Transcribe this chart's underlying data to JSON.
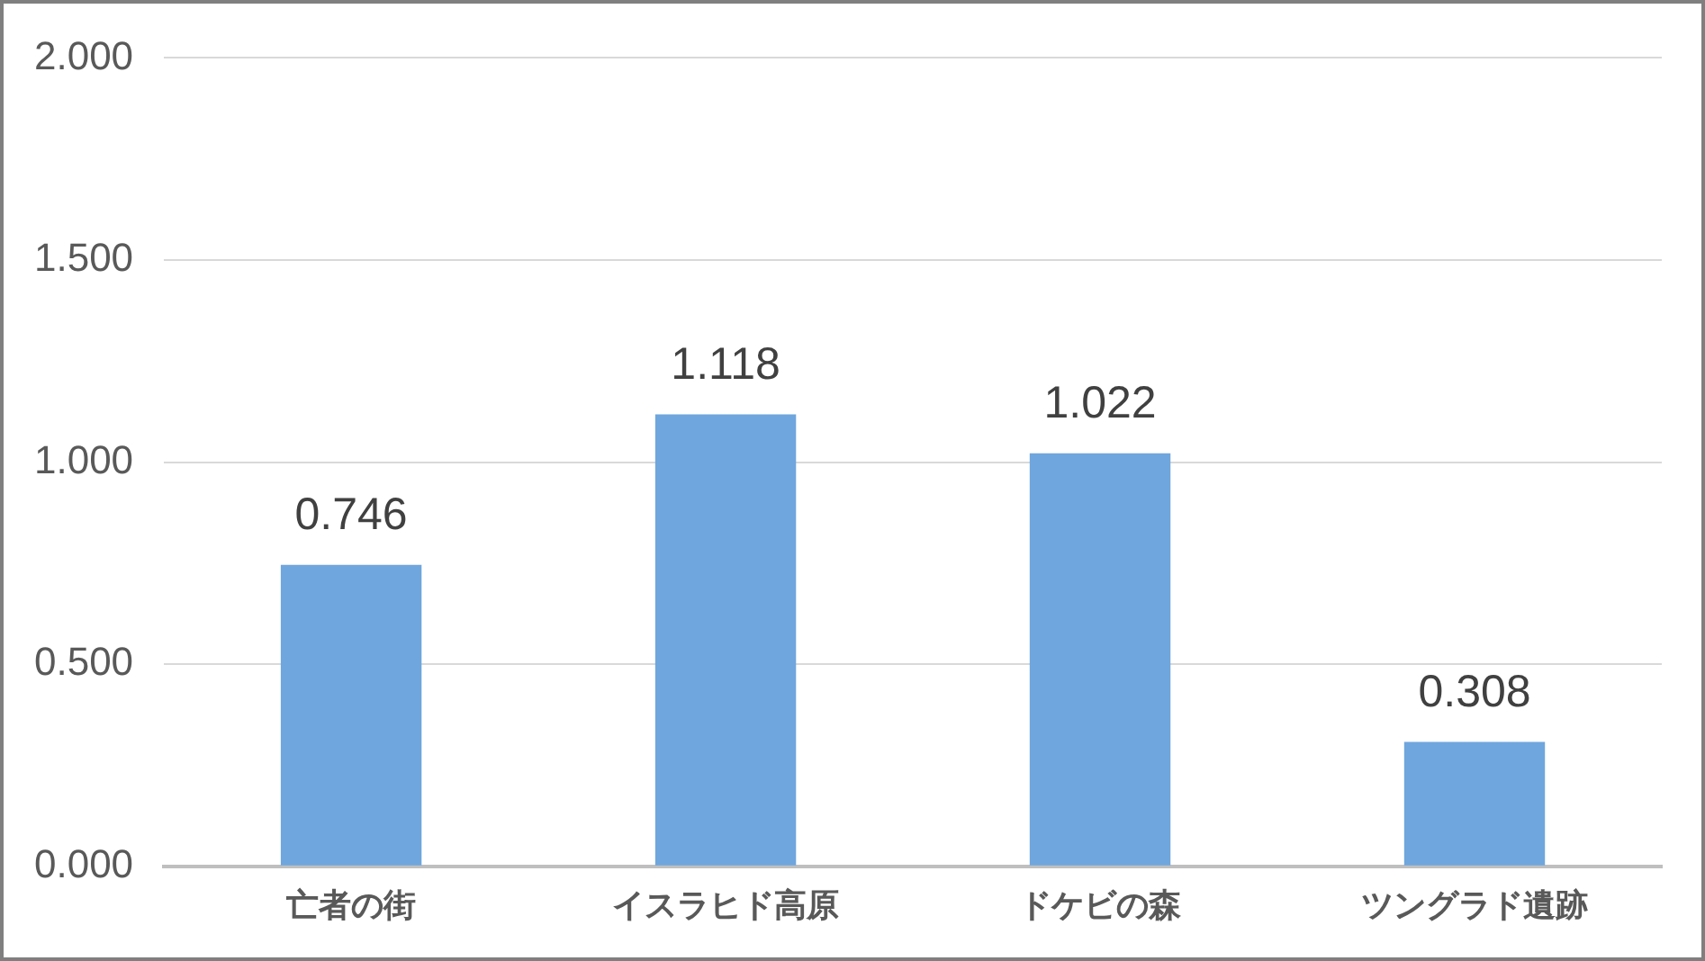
{
  "chart_data": {
    "type": "bar",
    "categories": [
      "亡者の街",
      "イスラヒド高原",
      "ドケビの森",
      "ツングラド遺跡"
    ],
    "values": [
      0.746,
      1.118,
      1.022,
      0.308
    ],
    "color": "#6fa6dd",
    "ylim": [
      0,
      2
    ],
    "yticks": [
      {
        "value": 0,
        "label": "0.000"
      },
      {
        "value": 0.5,
        "label": "0.500"
      },
      {
        "value": 1,
        "label": "1.000"
      },
      {
        "value": 1.5,
        "label": "1.500"
      },
      {
        "value": 2,
        "label": "2.000"
      }
    ],
    "grid": "y",
    "data_labels": true
  }
}
